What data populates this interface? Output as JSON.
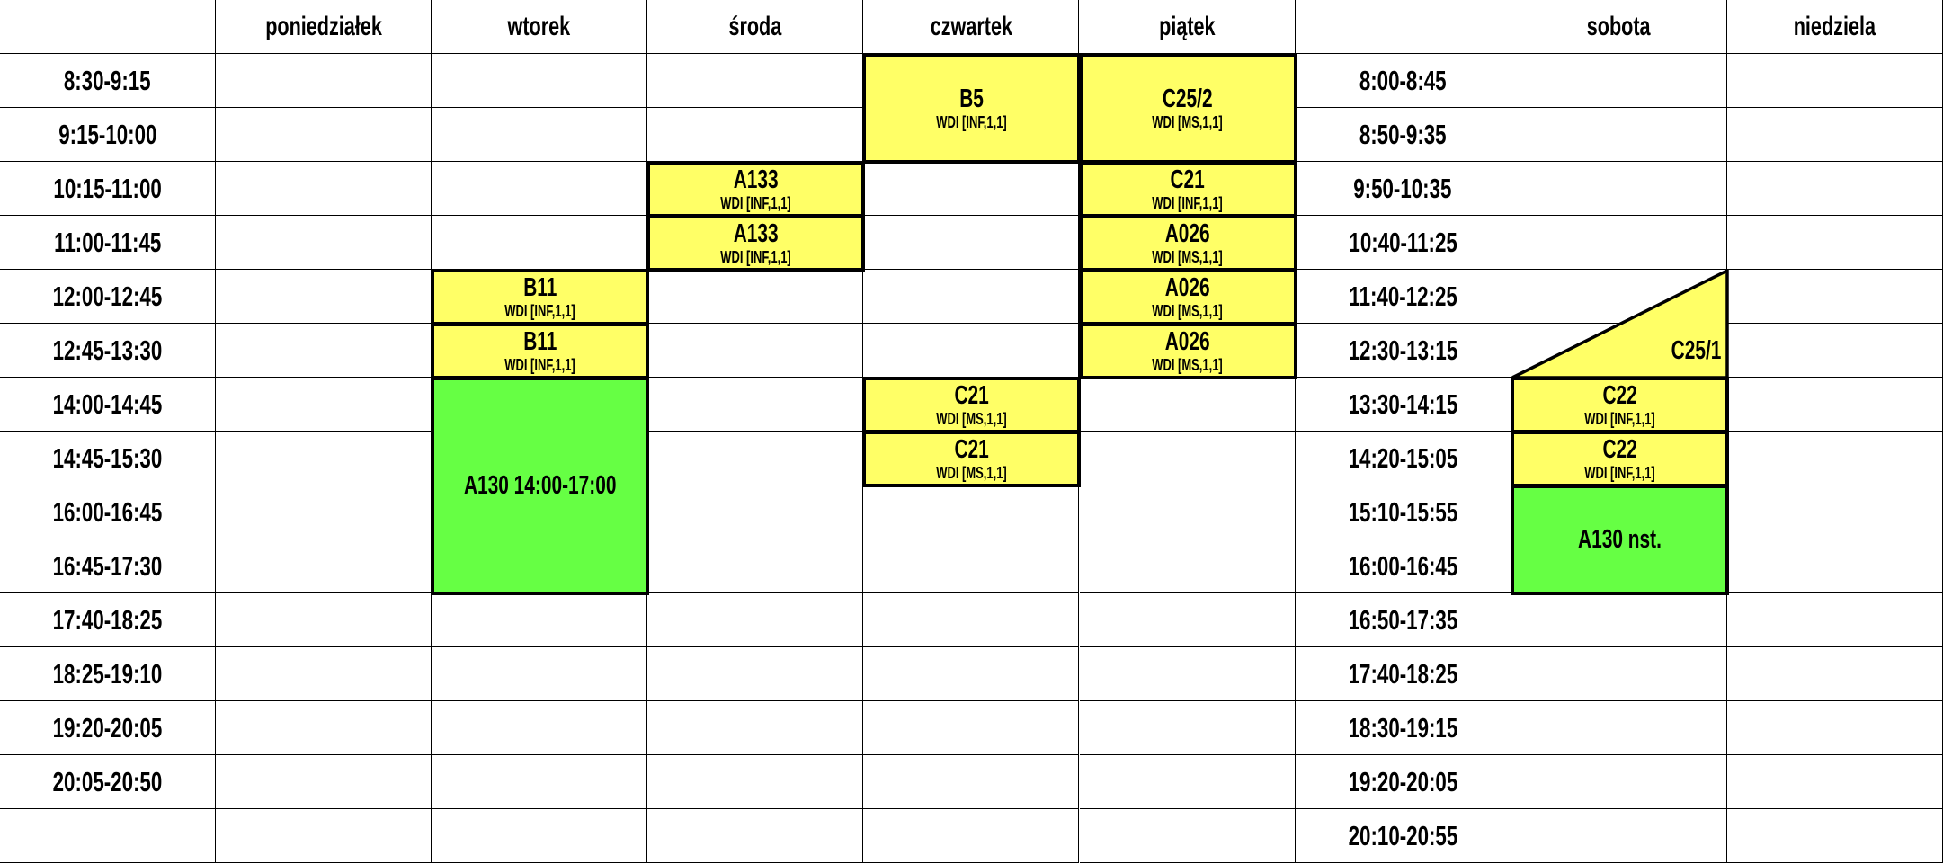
{
  "colors": {
    "lecture": "#ffff66",
    "lab": "#66ff44",
    "grid": "#000000"
  },
  "header": [
    "",
    "poniedziałek",
    "wtorek",
    "środa",
    "czwartek",
    "piątek",
    "",
    "sobota",
    "niedziela"
  ],
  "weekday_times": [
    "8:30-9:15",
    "9:15-10:00",
    "10:15-11:00",
    "11:00-11:45",
    "12:00-12:45",
    "12:45-13:30",
    "14:00-14:45",
    "14:45-15:30",
    "16:00-16:45",
    "16:45-17:30",
    "17:40-18:25",
    "18:25-19:10",
    "19:20-20:05",
    "20:05-20:50",
    ""
  ],
  "weekend_times": [
    "8:00-8:45",
    "8:50-9:35",
    "9:50-10:35",
    "10:40-11:25",
    "11:40-12:25",
    "12:30-13:15",
    "13:30-14:15",
    "14:20-15:05",
    "15:10-15:55",
    "16:00-16:45",
    "16:50-17:35",
    "17:40-18:25",
    "18:30-19:15",
    "19:20-20:05",
    "20:10-20:55"
  ],
  "blocks": [
    {
      "day": "czwartek",
      "slot": 1,
      "span": 2,
      "room": "B5",
      "subject": "WDI [INF,1,1]",
      "kind": "lecture"
    },
    {
      "day": "piątek",
      "slot": 1,
      "span": 2,
      "room": "C25/2",
      "subject": "WDI [MS,1,1]",
      "kind": "lecture"
    },
    {
      "day": "środa",
      "slot": 3,
      "span": 1,
      "room": "A133",
      "subject": "WDI [INF,1,1]",
      "kind": "lecture"
    },
    {
      "day": "środa",
      "slot": 4,
      "span": 1,
      "room": "A133",
      "subject": "WDI [INF,1,1]",
      "kind": "lecture"
    },
    {
      "day": "piątek",
      "slot": 3,
      "span": 1,
      "room": "C21",
      "subject": "WDI [INF,1,1]",
      "kind": "lecture"
    },
    {
      "day": "piątek",
      "slot": 4,
      "span": 1,
      "room": "A026",
      "subject": "WDI [MS,1,1]",
      "kind": "lecture"
    },
    {
      "day": "piątek",
      "slot": 5,
      "span": 1,
      "room": "A026",
      "subject": "WDI [MS,1,1]",
      "kind": "lecture"
    },
    {
      "day": "piątek",
      "slot": 6,
      "span": 1,
      "room": "A026",
      "subject": "WDI [MS,1,1]",
      "kind": "lecture"
    },
    {
      "day": "wtorek",
      "slot": 5,
      "span": 1,
      "room": "B11",
      "subject": "WDI [INF,1,1]",
      "kind": "lecture"
    },
    {
      "day": "wtorek",
      "slot": 6,
      "span": 1,
      "room": "B11",
      "subject": "WDI [INF,1,1]",
      "kind": "lecture"
    },
    {
      "day": "wtorek",
      "slot": 7,
      "span": 4,
      "room": "A130 14:00-17:00",
      "subject": "",
      "kind": "lab"
    },
    {
      "day": "czwartek",
      "slot": 7,
      "span": 1,
      "room": "C21",
      "subject": "WDI [MS,1,1]",
      "kind": "lecture"
    },
    {
      "day": "czwartek",
      "slot": 8,
      "span": 1,
      "room": "C21",
      "subject": "WDI [MS,1,1]",
      "kind": "lecture"
    },
    {
      "day": "sobota",
      "slot": 7,
      "span": 1,
      "room": "C22",
      "subject": "WDI [INF,1,1]",
      "kind": "lecture"
    },
    {
      "day": "sobota",
      "slot": 8,
      "span": 1,
      "room": "C22",
      "subject": "WDI [INF,1,1]",
      "kind": "lecture"
    },
    {
      "day": "sobota",
      "slot": 9,
      "span": 2,
      "room": "A130 nst.",
      "subject": "",
      "kind": "lab"
    }
  ],
  "triangle_block": {
    "day": "sobota",
    "slot": 5,
    "span": 2,
    "room": "C25/1",
    "kind": "lecture"
  }
}
